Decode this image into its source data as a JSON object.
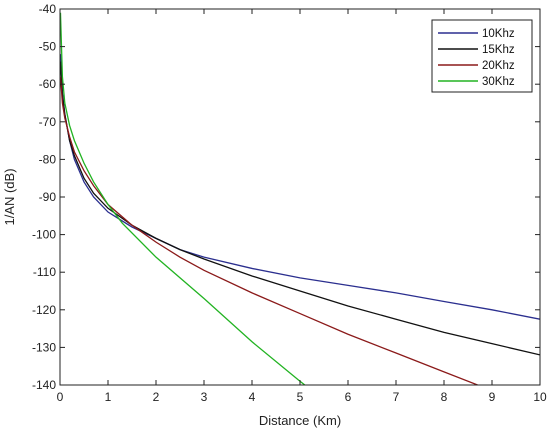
{
  "chart_data": {
    "type": "line",
    "title": "",
    "xlabel": "Distance (Km)",
    "ylabel": "1/AN (dB)",
    "xlim": [
      0,
      10
    ],
    "ylim": [
      -140,
      -40
    ],
    "x_ticks": [
      "0",
      "1",
      "2",
      "3",
      "4",
      "5",
      "6",
      "7",
      "8",
      "9",
      "10"
    ],
    "y_ticks": [
      "-40",
      "-50",
      "-60",
      "-70",
      "-80",
      "-90",
      "-100",
      "-110",
      "-120",
      "-130",
      "-140"
    ],
    "grid": false,
    "legend_position": "top-right",
    "series": [
      {
        "name": "10Khz",
        "color": "#2b2f8f",
        "points": [
          [
            0.01,
            -52
          ],
          [
            0.05,
            -62
          ],
          [
            0.1,
            -68
          ],
          [
            0.2,
            -75
          ],
          [
            0.3,
            -80
          ],
          [
            0.5,
            -86
          ],
          [
            0.7,
            -90
          ],
          [
            1,
            -94
          ],
          [
            1.5,
            -98
          ],
          [
            2,
            -101
          ],
          [
            2.5,
            -104
          ],
          [
            3,
            -106
          ],
          [
            4,
            -109
          ],
          [
            5,
            -111.5
          ],
          [
            6,
            -113.5
          ],
          [
            7,
            -115.5
          ],
          [
            8,
            -117.8
          ],
          [
            9,
            -120
          ],
          [
            10,
            -122.5
          ]
        ]
      },
      {
        "name": "15Khz",
        "color": "#111111",
        "points": [
          [
            0.01,
            -54
          ],
          [
            0.05,
            -63
          ],
          [
            0.1,
            -68
          ],
          [
            0.2,
            -75
          ],
          [
            0.3,
            -79
          ],
          [
            0.5,
            -85
          ],
          [
            0.7,
            -89
          ],
          [
            1,
            -93
          ],
          [
            1.5,
            -97.5
          ],
          [
            2,
            -101
          ],
          [
            2.5,
            -104
          ],
          [
            3,
            -106.5
          ],
          [
            4,
            -111
          ],
          [
            5,
            -115
          ],
          [
            6,
            -119
          ],
          [
            7,
            -122.5
          ],
          [
            8,
            -126
          ],
          [
            9,
            -129
          ],
          [
            10,
            -132
          ]
        ]
      },
      {
        "name": "20Khz",
        "color": "#8b1a1a",
        "points": [
          [
            0.01,
            -58
          ],
          [
            0.05,
            -65
          ],
          [
            0.1,
            -69
          ],
          [
            0.2,
            -74
          ],
          [
            0.3,
            -78
          ],
          [
            0.5,
            -83
          ],
          [
            0.7,
            -87
          ],
          [
            1,
            -92
          ],
          [
            1.5,
            -97.5
          ],
          [
            2,
            -102
          ],
          [
            2.5,
            -106
          ],
          [
            3,
            -109.5
          ],
          [
            4,
            -115.5
          ],
          [
            5,
            -121
          ],
          [
            6,
            -126.5
          ],
          [
            7,
            -131.5
          ],
          [
            8,
            -136.5
          ],
          [
            8.7,
            -140
          ]
        ]
      },
      {
        "name": "30Khz",
        "color": "#22b322",
        "points": [
          [
            0.01,
            -41
          ],
          [
            0.05,
            -58
          ],
          [
            0.1,
            -65
          ],
          [
            0.2,
            -71
          ],
          [
            0.3,
            -75
          ],
          [
            0.5,
            -81
          ],
          [
            0.7,
            -86
          ],
          [
            1,
            -92
          ],
          [
            1.3,
            -97
          ],
          [
            2,
            -106
          ],
          [
            3,
            -117
          ],
          [
            4,
            -128.5
          ],
          [
            5,
            -139
          ],
          [
            5.1,
            -140
          ]
        ]
      }
    ]
  }
}
